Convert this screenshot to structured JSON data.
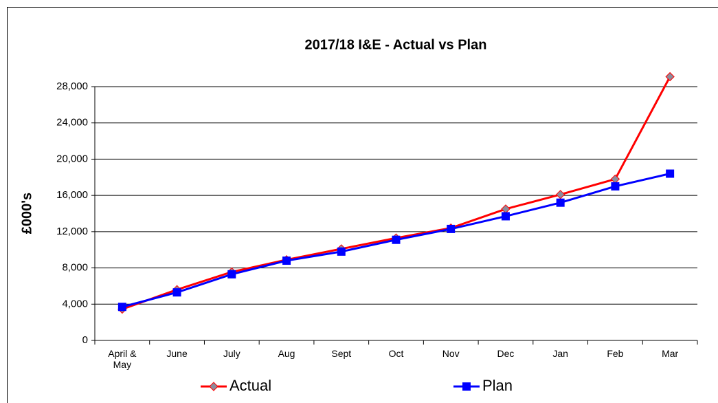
{
  "chart_data": {
    "type": "line",
    "title": "2017/18 I&E - Actual vs Plan",
    "y_label": "£000's",
    "categories": [
      "April & May",
      "June",
      "July",
      "Aug",
      "Sept",
      "Oct",
      "Nov",
      "Dec",
      "Jan",
      "Feb",
      "Mar"
    ],
    "series": [
      {
        "name": "Actual",
        "color": "#ff0000",
        "marker_color": "#8c8c9c",
        "values": [
          3450,
          5600,
          7550,
          8900,
          10100,
          11300,
          12400,
          14500,
          16100,
          17800,
          29100
        ]
      },
      {
        "name": "Plan",
        "color": "#0000ff",
        "marker_color": "#0000ff",
        "values": [
          3700,
          5300,
          7300,
          8800,
          9800,
          11100,
          12300,
          13700,
          15200,
          17000,
          18400
        ]
      }
    ],
    "ylim": [
      0,
      28000
    ],
    "yticks": [
      0,
      {
        "value": 4000,
        "label": "4,000"
      },
      {
        "value": 8000,
        "label": "8,000"
      },
      {
        "value": 12000,
        "label": "12,000"
      },
      {
        "value": 16000,
        "label": "16,000"
      },
      {
        "value": 20000,
        "label": "20,000"
      },
      {
        "value": 24000,
        "label": "24,000"
      },
      {
        "value": 28000,
        "label": "28,000"
      }
    ],
    "grid": true,
    "legend": "bottom"
  }
}
